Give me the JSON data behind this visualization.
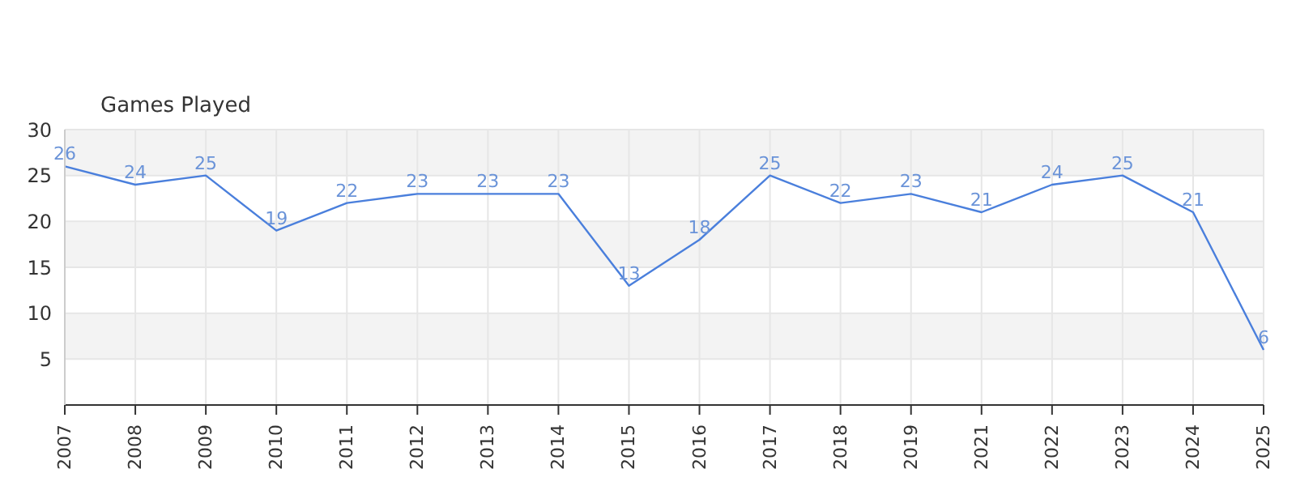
{
  "chart_data": {
    "type": "line",
    "title": "Games Played",
    "categories": [
      "2007",
      "2008",
      "2009",
      "2010",
      "2011",
      "2012",
      "2013",
      "2014",
      "2015",
      "2016",
      "2017",
      "2018",
      "2019",
      "2021",
      "2022",
      "2023",
      "2024",
      "2025"
    ],
    "series": [
      {
        "color": "#4a7fdc",
        "values": [
          26,
          24,
          25,
          19,
          22,
          23,
          23,
          23,
          13,
          18,
          25,
          22,
          23,
          21,
          24,
          25,
          21,
          6
        ]
      }
    ],
    "ylim": [
      0,
      30
    ],
    "yticks": [
      5,
      10,
      15,
      20,
      25,
      30
    ],
    "grid": true,
    "marker": "none",
    "data_labels": true
  }
}
